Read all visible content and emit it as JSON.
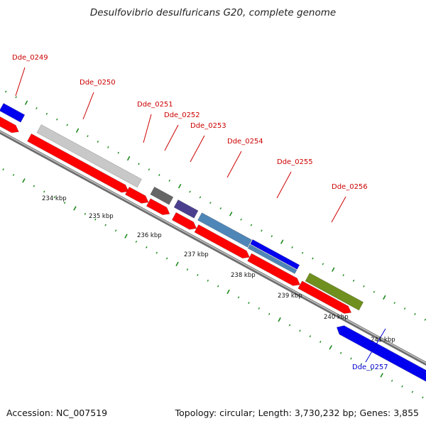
{
  "title": "Desulfovibrio desulfuricans G20, complete genome",
  "accession": "Accession: NC_007519",
  "topology": "Topology: circular; Length: 3,730,232 bp; Genes: 3,855",
  "colors": {
    "backbone": "#8a8a8a",
    "tick": "#1e8a1e",
    "cds": "#ff0000",
    "label_red": "#cc0000",
    "label_blue": "#0000cc"
  },
  "ticks": [
    "234 kbp",
    "235 kbp",
    "236 kbp",
    "237 kbp",
    "238 kbp",
    "239 kbp",
    "240 kbp",
    "241 kbp"
  ],
  "genes": [
    {
      "name": "Dde_0249",
      "color": "#0000ee"
    },
    {
      "name": "Dde_0250",
      "color": "#c8c8c8"
    },
    {
      "name": "Dde_0251",
      "color": "#666666"
    },
    {
      "name": "Dde_0252",
      "color": "#4a3f8f"
    },
    {
      "name": "Dde_0253",
      "color": "#4f86b8"
    },
    {
      "name": "Dde_0254",
      "color": "#0000ee"
    },
    {
      "name": "Dde_0255",
      "color": "#4f86b8"
    },
    {
      "name": "Dde_0256",
      "color": "#6f8f1f"
    },
    {
      "name": "Dde_0257",
      "color": "#0000ee"
    }
  ]
}
